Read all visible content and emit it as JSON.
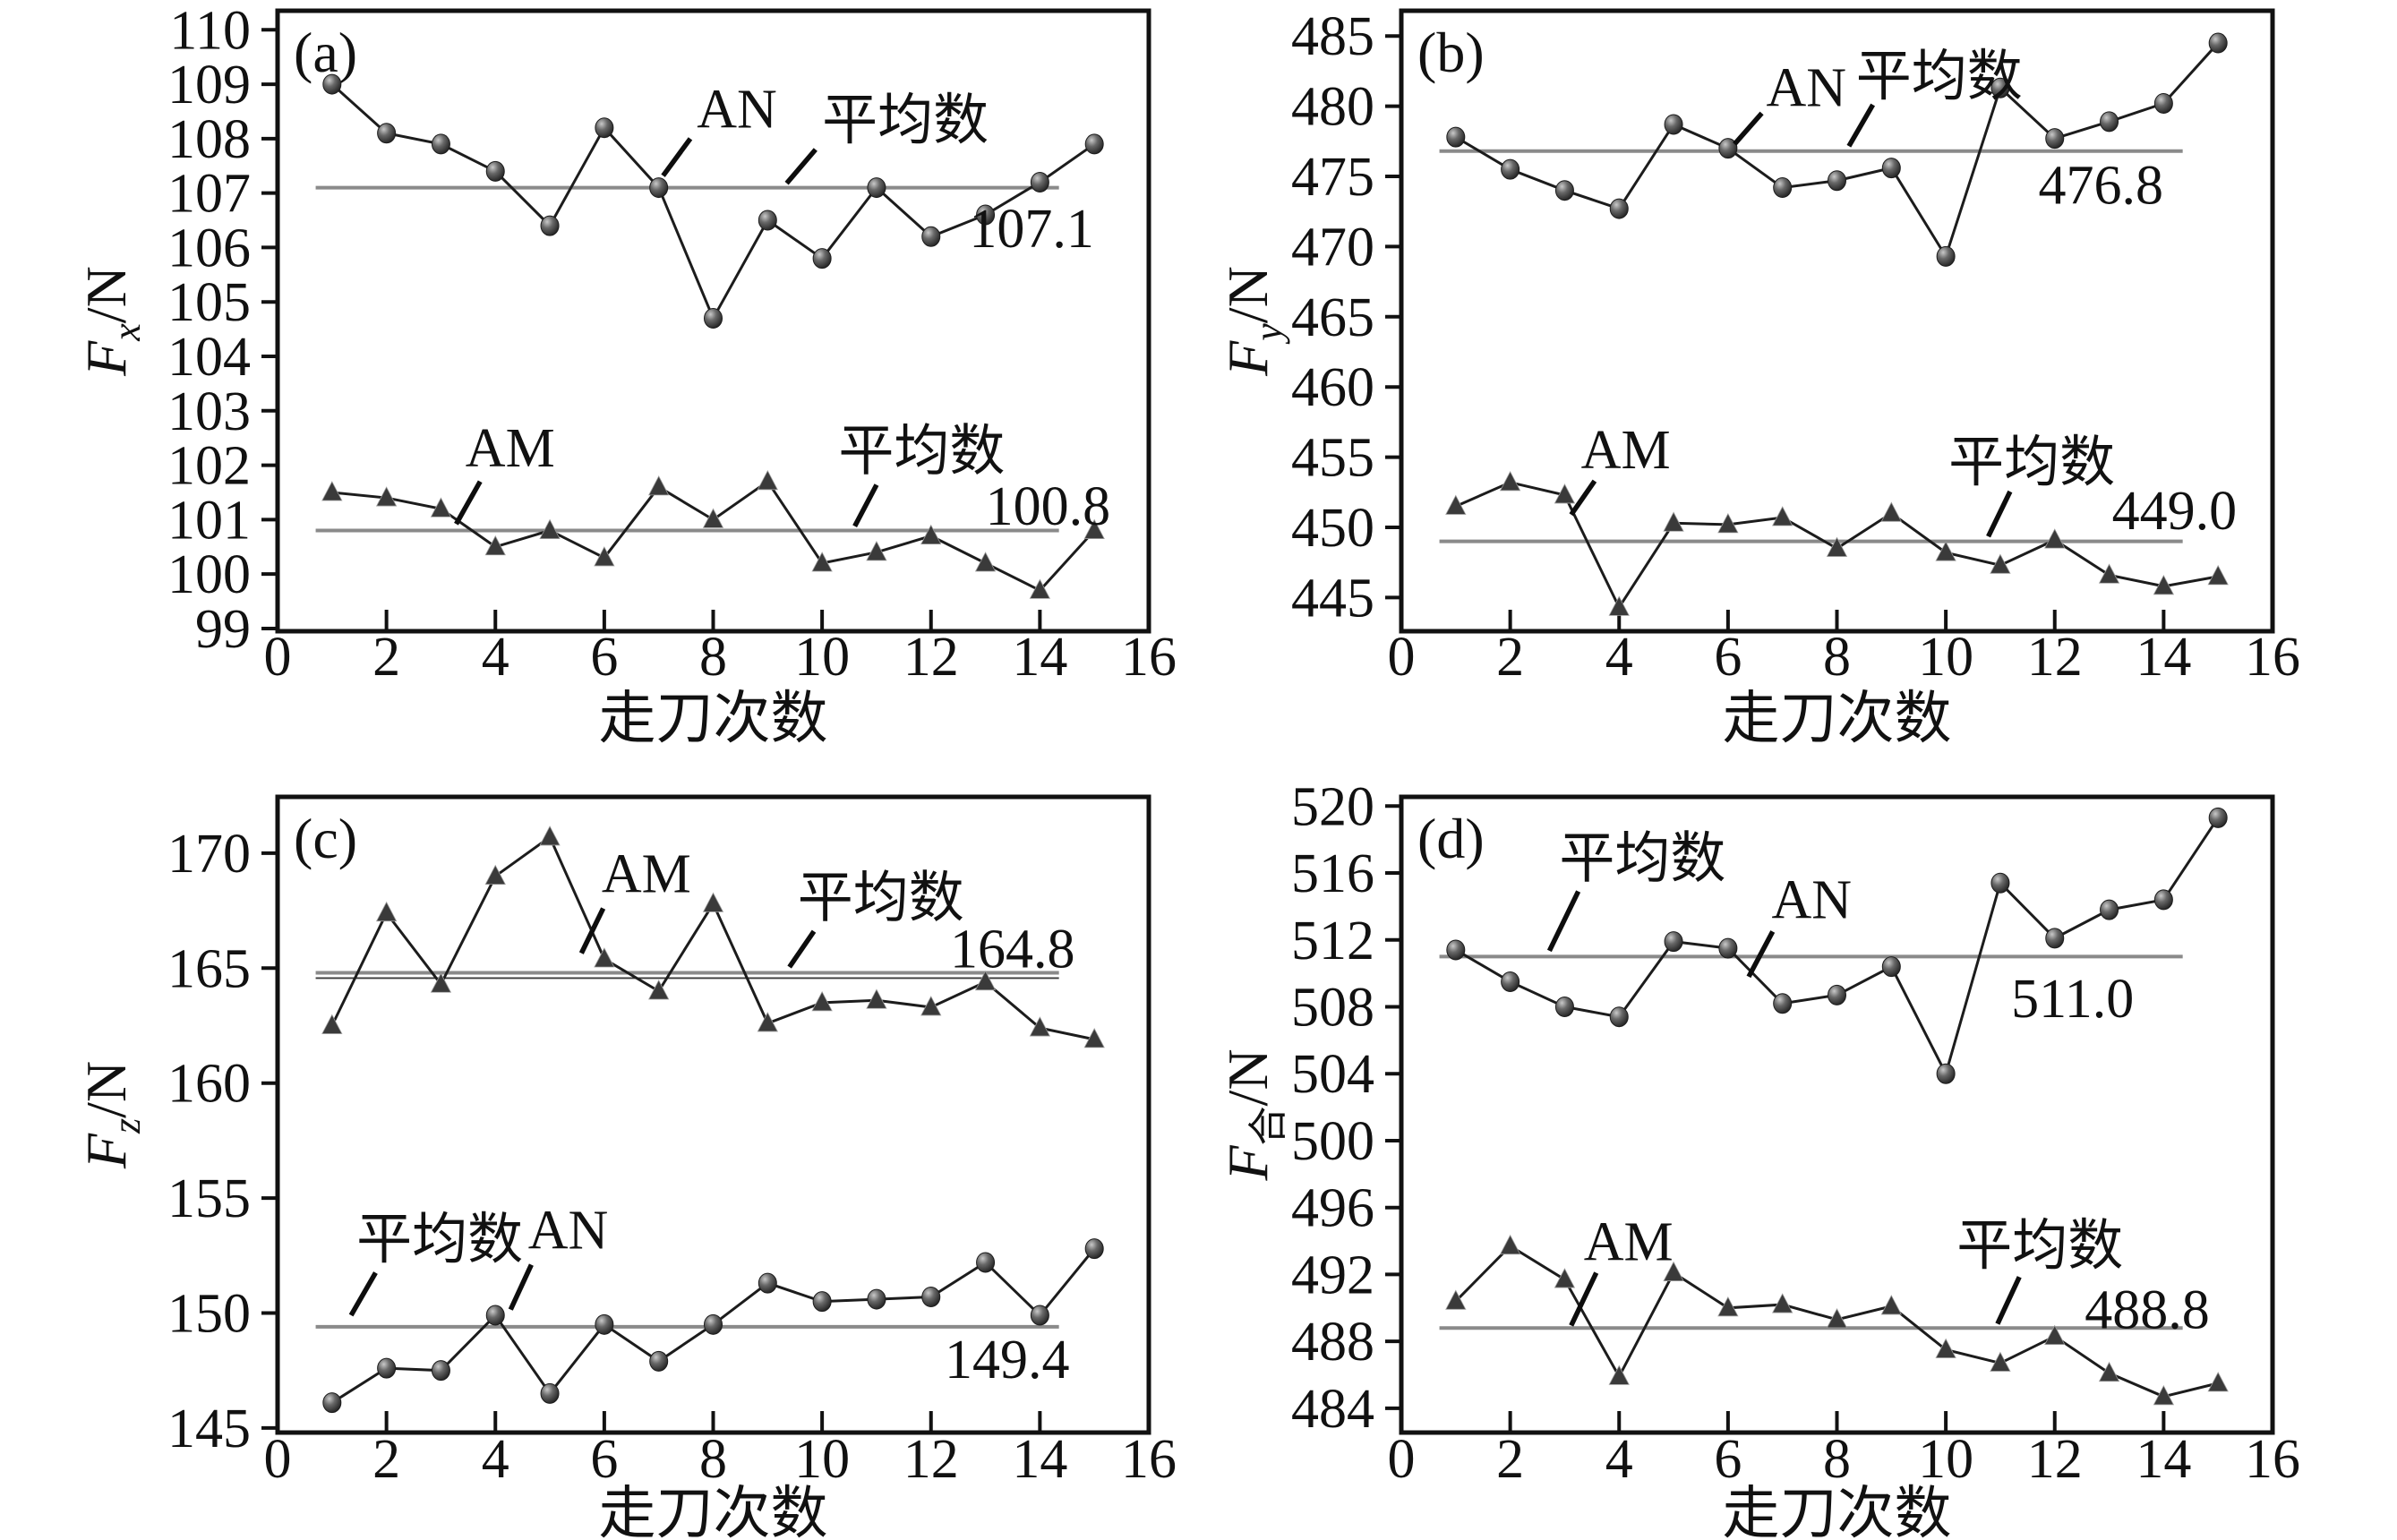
{
  "figure": {
    "background": "#ffffff",
    "text_color": "#111111",
    "axis_color": "#111111",
    "mean_line_color": "#8a8a8a",
    "data_line_color": "#1c1c1c",
    "marker_dark": "#3a3a3a"
  },
  "chart_data": [
    {
      "id": "a",
      "type": "line",
      "panel_label": "(a)",
      "xlabel": "走刀次数",
      "ylabel": {
        "base": "F",
        "sub": "x",
        "unit": "/N"
      },
      "xlim": [
        0,
        16
      ],
      "xticks": [
        0,
        2,
        4,
        6,
        8,
        10,
        12,
        14,
        16
      ],
      "ylim": [
        98.95,
        110.35
      ],
      "yticks": [
        99,
        100,
        101,
        102,
        103,
        104,
        105,
        106,
        107,
        108,
        109,
        110
      ],
      "x": [
        1,
        2,
        3,
        4,
        5,
        6,
        7,
        8,
        9,
        10,
        11,
        12,
        13,
        14,
        15
      ],
      "series": [
        {
          "name": "AN",
          "marker": "circle",
          "values": [
            109.0,
            108.1,
            107.9,
            107.4,
            106.4,
            108.2,
            107.1,
            104.7,
            106.5,
            105.8,
            107.1,
            106.2,
            106.6,
            107.2,
            107.9
          ],
          "mean": 107.1,
          "mean_label": "平均数",
          "mean_value_label": "107.1"
        },
        {
          "name": "AM",
          "marker": "triangle",
          "values": [
            101.5,
            101.4,
            101.2,
            100.5,
            100.8,
            100.3,
            101.6,
            101.0,
            101.7,
            100.2,
            100.4,
            100.7,
            100.2,
            99.7,
            100.8
          ],
          "mean": 100.8,
          "mean_label": "平均数",
          "mean_value_label": "100.8"
        }
      ],
      "annotations": {
        "series_labels": [
          {
            "text": "AN",
            "x": 7.7,
            "y": 108.2,
            "pointer": [
              7.08,
              107.32,
              7.58,
              108.0
            ]
          },
          {
            "text": "AM",
            "x": 3.45,
            "y": 101.98,
            "pointer": [
              3.28,
              100.92,
              3.72,
              101.7
            ]
          }
        ],
        "mean_labels": [
          {
            "text": "平均数",
            "x": 10.0,
            "y": 108.0,
            "pointer": [
              9.35,
              107.18,
              9.88,
              107.8
            ]
          },
          {
            "text": "平均数",
            "x": 10.3,
            "y": 101.92,
            "pointer": [
              10.6,
              100.88,
              11.0,
              101.64
            ]
          }
        ],
        "mean_values": [
          {
            "text": "107.1",
            "x": 12.7,
            "y": 106.35
          },
          {
            "text": "100.8",
            "x": 13.0,
            "y": 101.25
          }
        ]
      }
    },
    {
      "id": "b",
      "type": "line",
      "panel_label": "(b)",
      "xlabel": "走刀次数",
      "ylabel": {
        "base": "F",
        "sub": "y",
        "unit": "/N"
      },
      "xlim": [
        0,
        16
      ],
      "xticks": [
        0,
        2,
        4,
        6,
        8,
        10,
        12,
        14,
        16
      ],
      "ylim": [
        442.6,
        486.8
      ],
      "yticks": [
        445,
        450,
        455,
        460,
        465,
        470,
        475,
        480,
        485
      ],
      "x": [
        1,
        2,
        3,
        4,
        5,
        6,
        7,
        8,
        9,
        10,
        11,
        12,
        13,
        14,
        15
      ],
      "series": [
        {
          "name": "AN",
          "marker": "circle",
          "values": [
            477.8,
            475.5,
            474.0,
            472.7,
            478.7,
            477.0,
            474.2,
            474.7,
            475.6,
            469.3,
            481.3,
            477.7,
            478.9,
            480.2,
            484.5
          ],
          "mean": 476.8,
          "mean_label": "平均数",
          "mean_value_label": "476.8"
        },
        {
          "name": "AM",
          "marker": "triangle",
          "values": [
            451.5,
            453.2,
            452.3,
            444.3,
            450.3,
            450.2,
            450.7,
            448.5,
            451.0,
            448.2,
            447.3,
            449.1,
            446.6,
            445.8,
            446.5
          ],
          "mean": 449.0,
          "mean_label": "平均数",
          "mean_value_label": "449.0"
        }
      ],
      "annotations": {
        "series_labels": [
          {
            "text": "AN",
            "x": 6.7,
            "y": 480.0,
            "pointer": [
              6.12,
              477.3,
              6.62,
              479.5
            ]
          },
          {
            "text": "AM",
            "x": 3.3,
            "y": 454.2,
            "pointer": [
              3.12,
              450.9,
              3.55,
              453.3
            ]
          }
        ],
        "mean_labels": [
          {
            "text": "平均数",
            "x": 8.35,
            "y": 480.8,
            "pointer": [
              8.22,
              477.15,
              8.66,
              480.1
            ]
          },
          {
            "text": "平均数",
            "x": 10.05,
            "y": 453.3,
            "pointer": [
              10.78,
              449.35,
              11.18,
              452.55
            ]
          }
        ],
        "mean_values": [
          {
            "text": "476.8",
            "x": 11.7,
            "y": 474.4
          },
          {
            "text": "449.0",
            "x": 13.05,
            "y": 451.2
          }
        ]
      }
    },
    {
      "id": "c",
      "type": "line",
      "panel_label": "(c)",
      "xlabel": "走刀次数",
      "ylabel": {
        "base": "F",
        "sub": "z",
        "unit": "/N"
      },
      "xlim": [
        0,
        16
      ],
      "xticks": [
        0,
        2,
        4,
        6,
        8,
        10,
        12,
        14,
        16
      ],
      "ylim": [
        144.8,
        172.45
      ],
      "yticks": [
        145,
        150,
        155,
        160,
        165,
        170
      ],
      "x": [
        1,
        2,
        3,
        4,
        5,
        6,
        7,
        8,
        9,
        10,
        11,
        12,
        13,
        14,
        15
      ],
      "series": [
        {
          "name": "AM",
          "marker": "triangle",
          "values": [
            162.5,
            167.4,
            164.3,
            169.0,
            170.7,
            165.4,
            164.0,
            167.8,
            162.6,
            163.5,
            163.6,
            163.3,
            164.4,
            162.4,
            161.9
          ],
          "mean": 164.8,
          "mean_label": "平均数",
          "mean_value_label": "164.8",
          "double_line": true
        },
        {
          "name": "AN",
          "marker": "circle",
          "values": [
            146.1,
            147.6,
            147.5,
            149.9,
            146.5,
            149.5,
            147.9,
            149.5,
            151.3,
            150.5,
            150.6,
            150.7,
            152.2,
            149.9,
            152.8
          ],
          "mean": 149.4,
          "mean_label": "平均数",
          "mean_value_label": "149.4"
        }
      ],
      "annotations": {
        "series_labels": [
          {
            "text": "AM",
            "x": 5.95,
            "y": 168.3,
            "pointer": [
              5.58,
              165.65,
              5.98,
              167.6
            ]
          },
          {
            "text": "AN",
            "x": 4.6,
            "y": 152.8,
            "pointer": [
              4.28,
              150.15,
              4.66,
              152.1
            ]
          }
        ],
        "mean_labels": [
          {
            "text": "平均数",
            "x": 9.55,
            "y": 167.25,
            "pointer": [
              9.4,
              165.05,
              9.85,
              166.6
            ]
          },
          {
            "text": "平均数",
            "x": 1.45,
            "y": 152.4,
            "pointer": [
              1.35,
              149.9,
              1.8,
              151.75
            ]
          }
        ],
        "mean_values": [
          {
            "text": "164.8",
            "x": 12.35,
            "y": 165.85
          },
          {
            "text": "149.4",
            "x": 12.25,
            "y": 148.0
          }
        ]
      }
    },
    {
      "id": "d",
      "type": "line",
      "panel_label": "(d)",
      "xlabel": "走刀次数",
      "ylabel": {
        "base": "F",
        "sub": "合",
        "unit": "/N"
      },
      "xlim": [
        0,
        16
      ],
      "xticks": [
        0,
        2,
        4,
        6,
        8,
        10,
        12,
        14,
        16
      ],
      "ylim": [
        482.55,
        520.55
      ],
      "yticks": [
        484,
        488,
        492,
        496,
        500,
        504,
        508,
        512,
        516,
        520
      ],
      "x": [
        1,
        2,
        3,
        4,
        5,
        6,
        7,
        8,
        9,
        10,
        11,
        12,
        13,
        14,
        15
      ],
      "series": [
        {
          "name": "AN",
          "marker": "circle",
          "values": [
            511.4,
            509.5,
            508.0,
            507.4,
            511.9,
            511.5,
            508.2,
            508.7,
            510.4,
            504.0,
            515.4,
            512.1,
            513.8,
            514.4,
            519.3
          ],
          "mean": 511.0,
          "mean_label": "平均数",
          "mean_value_label": "511.0"
        },
        {
          "name": "AM",
          "marker": "triangle",
          "values": [
            490.4,
            493.7,
            491.7,
            485.9,
            492.1,
            490.0,
            490.2,
            489.3,
            490.1,
            487.5,
            486.7,
            488.3,
            486.1,
            484.7,
            485.5
          ],
          "mean": 488.8,
          "mean_label": "平均数",
          "mean_value_label": "488.8"
        }
      ],
      "annotations": {
        "series_labels": [
          {
            "text": "AN",
            "x": 6.8,
            "y": 513.3,
            "pointer": [
              6.38,
              509.8,
              6.82,
              512.5
            ]
          },
          {
            "text": "AM",
            "x": 3.35,
            "y": 492.85,
            "pointer": [
              3.12,
              488.95,
              3.58,
              492.1
            ]
          }
        ],
        "mean_labels": [
          {
            "text": "平均数",
            "x": 2.9,
            "y": 515.75,
            "pointer": [
              2.72,
              511.35,
              3.25,
              514.9
            ]
          },
          {
            "text": "平均数",
            "x": 10.2,
            "y": 492.6,
            "pointer": [
              10.95,
              489.05,
              11.35,
              491.85
            ]
          }
        ],
        "mean_values": [
          {
            "text": "511.0",
            "x": 11.2,
            "y": 508.5
          },
          {
            "text": "488.8",
            "x": 12.55,
            "y": 489.9
          }
        ]
      }
    }
  ]
}
